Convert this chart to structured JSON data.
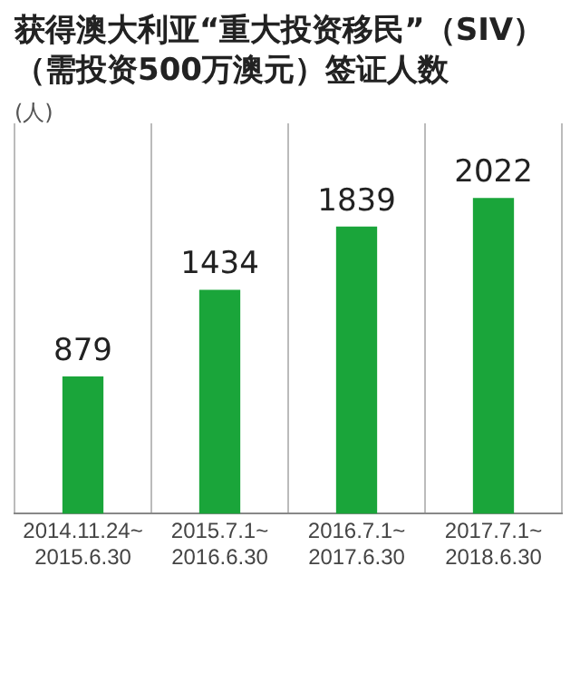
{
  "chart_data": {
    "type": "bar",
    "title": "获得澳大利亚“重大投资移民”（SIV）（需投资500万澳元）签证人数",
    "ylabel": "(人)",
    "categories": [
      "2014.11.24~2015.6.30",
      "2015.7.1~2016.6.30",
      "2016.7.1~2017.6.30",
      "2017.7.1~2018.6.30"
    ],
    "values": [
      879,
      1434,
      1839,
      2022
    ],
    "color": "#1aa53a",
    "data_labels": true,
    "grid": "x",
    "legend": false
  }
}
